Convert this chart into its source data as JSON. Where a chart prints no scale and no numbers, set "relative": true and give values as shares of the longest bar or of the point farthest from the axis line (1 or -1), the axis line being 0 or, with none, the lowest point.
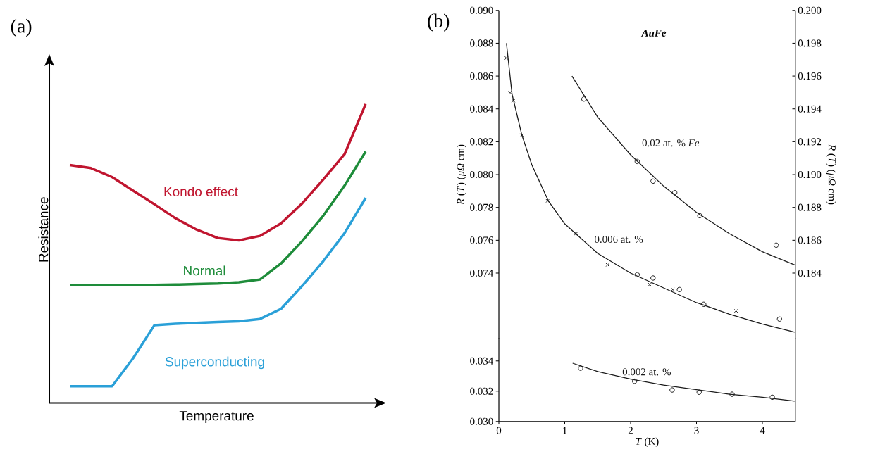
{
  "chart_data": [
    {
      "type": "line",
      "title": "(a)",
      "xlabel": "Temperature",
      "ylabel": "Resistance",
      "relative": true,
      "categories": [
        null,
        null,
        null,
        null,
        null,
        null,
        null,
        null,
        null,
        null,
        null,
        null,
        null,
        null,
        null
      ],
      "series": [
        {
          "name": "Kondo effect",
          "color": "#c0152f",
          "values": [
            0.796,
            0.786,
            0.756,
            0.71,
            0.665,
            0.618,
            0.58,
            0.552,
            0.544,
            0.559,
            0.601,
            0.668,
            0.748,
            0.832,
            1.0
          ]
        },
        {
          "name": "Normal",
          "color": "#1e8c3a",
          "values": [
            0.395,
            0.394,
            0.394,
            0.394,
            0.395,
            0.396,
            0.398,
            0.4,
            0.404,
            0.413,
            0.467,
            0.542,
            0.627,
            0.727,
            0.841
          ]
        },
        {
          "name": "Superconducting",
          "color": "#2aa0d8",
          "values": [
            0.056,
            0.056,
            0.056,
            0.15,
            0.26,
            0.265,
            0.268,
            0.271,
            0.273,
            0.281,
            0.315,
            0.392,
            0.475,
            0.568,
            0.686
          ]
        }
      ]
    },
    {
      "type": "line",
      "title": "(b)",
      "ylabel": "*R* (*T*) (*μΩ* cm)",
      "y2label": "*R* (*T*) (*μΩ* cm)",
      "annotations": [
        "AuFe"
      ],
      "tick_labels": "y",
      "marker": "none",
      "xlim": [
        0,
        4.5
      ],
      "ylim": [
        0.07,
        0.09
      ],
      "yticks": [
        {
          "value": 0.074,
          "label": "0.074"
        },
        {
          "value": 0.076,
          "label": "0.076"
        },
        {
          "value": 0.078,
          "label": "0.078"
        },
        {
          "value": 0.08,
          "label": "0.080"
        },
        {
          "value": 0.082,
          "label": "0.082"
        },
        {
          "value": 0.084,
          "label": "0.084"
        },
        {
          "value": 0.086,
          "label": "0.086"
        },
        {
          "value": 0.088,
          "label": "0.088"
        },
        {
          "value": 0.09,
          "label": "0.090"
        }
      ],
      "y2lim": [
        0.18,
        0.2
      ],
      "y2ticks": [
        {
          "value": 0.184,
          "label": "0.184"
        },
        {
          "value": 0.186,
          "label": "0.186"
        },
        {
          "value": 0.188,
          "label": "0.188"
        },
        {
          "value": 0.19,
          "label": "0.190"
        },
        {
          "value": 0.192,
          "label": "0.192"
        },
        {
          "value": 0.194,
          "label": "0.194"
        },
        {
          "value": 0.196,
          "label": "0.196"
        },
        {
          "value": 0.198,
          "label": "0.198"
        },
        {
          "value": 0.2,
          "label": "0.200"
        }
      ],
      "series": [
        {
          "name": "0.02 at. % *Fe*",
          "axis": "y2",
          "color": "#1a1a1a",
          "x": [
            1.11,
            1.5,
            2.0,
            2.5,
            3.0,
            3.5,
            4.0,
            4.49
          ],
          "values": [
            0.196,
            0.1935,
            0.1912,
            0.1893,
            0.1877,
            0.1864,
            0.1853,
            0.1845
          ]
        },
        {
          "type": "scatter",
          "marker": "circle",
          "axis": "y2",
          "color": "#1a1a1a",
          "x": [
            1.29,
            2.1,
            2.34,
            2.67,
            3.05,
            4.21
          ],
          "values": [
            0.1946,
            0.1908,
            0.1896,
            0.1889,
            0.1875,
            0.1857
          ]
        },
        {
          "name": "0.006 at. %",
          "color": "#1a1a1a",
          "x": [
            0.115,
            0.2,
            0.35,
            0.5,
            0.75,
            1.0,
            1.5,
            2.0,
            2.5,
            3.0,
            3.5,
            4.0,
            4.49
          ],
          "values": [
            0.088,
            0.0849,
            0.0824,
            0.0806,
            0.0784,
            0.077,
            0.0752,
            0.074,
            0.0731,
            0.0722,
            0.0715,
            0.0709,
            0.0704
          ]
        },
        {
          "type": "scatter",
          "marker": "cross",
          "color": "#1a1a1a",
          "x": [
            0.115,
            0.17,
            0.22,
            0.35,
            0.74,
            1.17,
            1.65,
            2.29,
            2.64,
            3.6
          ],
          "values": [
            0.0871,
            0.085,
            0.0845,
            0.0824,
            0.0784,
            0.0764,
            0.0745,
            0.0733,
            0.073,
            0.0717
          ]
        },
        {
          "type": "scatter",
          "marker": "circle",
          "color": "#1a1a1a",
          "x": [
            2.1,
            2.34,
            2.74,
            3.11,
            4.26
          ],
          "values": [
            0.0739,
            0.0737,
            0.073,
            0.0721,
            0.0712
          ]
        }
      ]
    },
    {
      "type": "line",
      "xlabel": "*T* (K)",
      "marker": "none",
      "xlim": [
        0,
        4.5
      ],
      "xticks": [
        0,
        1,
        2,
        3,
        4
      ],
      "ylim": [
        0.03,
        0.0355
      ],
      "yticks": [
        {
          "value": 0.03,
          "label": "0.030"
        },
        {
          "value": 0.032,
          "label": "0.032"
        },
        {
          "value": 0.034,
          "label": "0.034"
        }
      ],
      "series": [
        {
          "name": "0.002 at. %",
          "color": "#1a1a1a",
          "x": [
            1.12,
            1.5,
            2.0,
            2.5,
            3.0,
            3.5,
            4.0,
            4.49
          ],
          "values": [
            0.03385,
            0.0333,
            0.0328,
            0.0324,
            0.0321,
            0.0318,
            0.0316,
            0.03134
          ]
        },
        {
          "type": "scatter",
          "marker": "circle",
          "color": "#1a1a1a",
          "x": [
            1.24,
            2.06,
            2.63,
            3.04,
            3.54,
            4.15
          ],
          "values": [
            0.03352,
            0.03266,
            0.03208,
            0.03193,
            0.0318,
            0.0316
          ]
        }
      ]
    }
  ]
}
